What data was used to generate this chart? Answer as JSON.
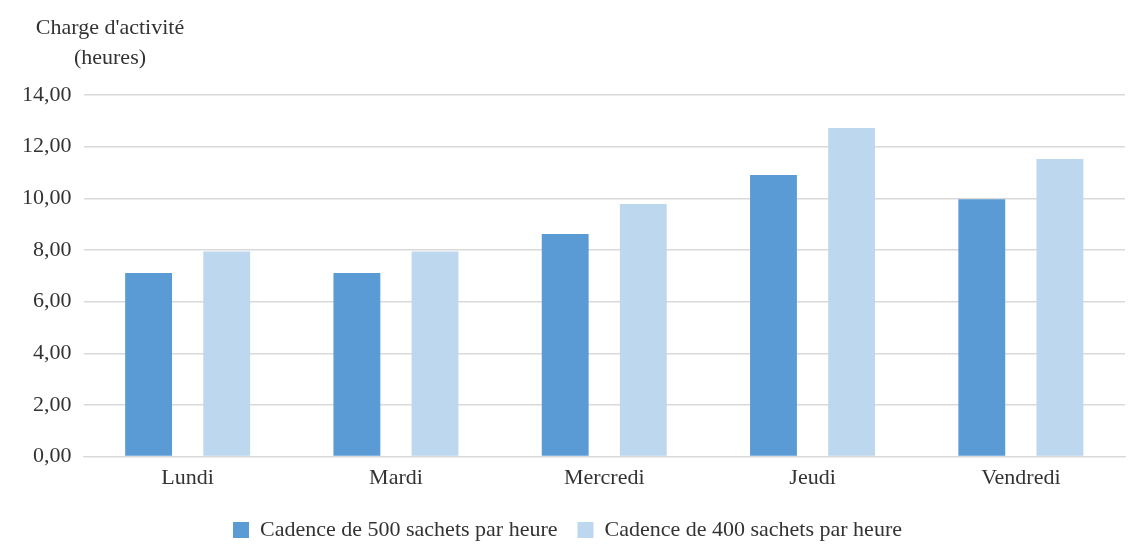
{
  "chart_data": {
    "type": "bar",
    "ylabel": "Charge d'activité\n(heures)",
    "categories": [
      "Lundi",
      "Mardi",
      "Mercredi",
      "Jeudi",
      "Vendredi"
    ],
    "series": [
      {
        "name": "Cadence de 500 sachets par heure",
        "color": "#5b9bd5",
        "values": [
          7.11,
          7.11,
          8.62,
          10.9,
          9.96
        ]
      },
      {
        "name": "Cadence de 400 sachets par heure",
        "color": "#bdd7ee",
        "values": [
          7.94,
          7.94,
          9.78,
          12.72,
          11.52
        ]
      }
    ],
    "ylim": [
      0,
      14
    ],
    "yticks": [
      {
        "value": 0,
        "label": "0,00"
      },
      {
        "value": 2,
        "label": "2,00"
      },
      {
        "value": 4,
        "label": "4,00"
      },
      {
        "value": 6,
        "label": "6,00"
      },
      {
        "value": 8,
        "label": "8,00"
      },
      {
        "value": 10,
        "label": "10,00"
      },
      {
        "value": 12,
        "label": "12,00"
      },
      {
        "value": 14,
        "label": "14,00"
      }
    ],
    "grid": "y",
    "legend": "bottom"
  }
}
